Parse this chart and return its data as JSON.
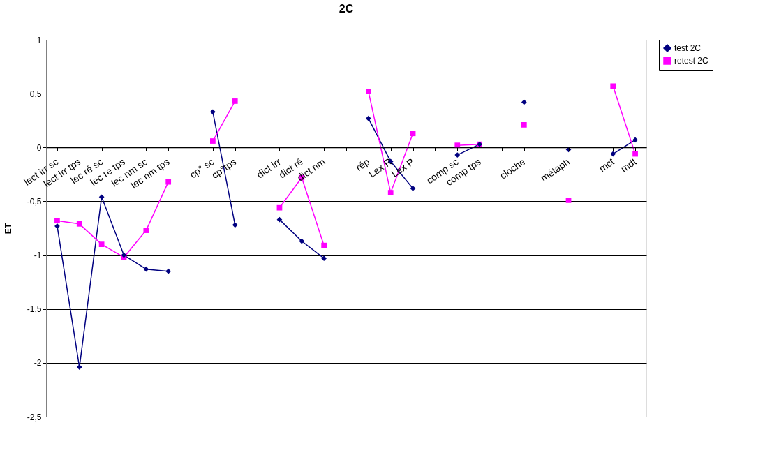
{
  "chart_data": {
    "type": "line",
    "title": "2C",
    "ylabel": "ET",
    "categories": [
      "lect irr sc",
      "lect irr tps",
      "lec ré sc",
      "lec re tps",
      "lec nm sc",
      "lec nm tps",
      null,
      "cp° sc",
      "cp°tps",
      null,
      "dict irr",
      "dict ré",
      "dict nm",
      null,
      "rép",
      "Lex R",
      "Lex P",
      null,
      "comp sc",
      "comp tps",
      null,
      "cloche",
      null,
      "métaph",
      null,
      "mct",
      "mdt"
    ],
    "series": [
      {
        "name": "test 2C",
        "color": "#000080",
        "marker": "diamond",
        "values": [
          -0.73,
          -2.04,
          -0.46,
          -1.0,
          -1.13,
          -1.15,
          null,
          0.33,
          -0.72,
          null,
          -0.67,
          -0.87,
          -1.03,
          null,
          0.27,
          -0.13,
          -0.38,
          null,
          -0.07,
          0.03,
          null,
          0.42,
          null,
          -0.02,
          null,
          -0.06,
          0.07
        ]
      },
      {
        "name": "retest 2C",
        "color": "#ff00ff",
        "marker": "square",
        "values": [
          -0.68,
          -0.71,
          -0.9,
          -1.02,
          -0.77,
          -0.32,
          null,
          0.06,
          0.43,
          null,
          -0.56,
          -0.28,
          -0.91,
          null,
          0.52,
          -0.42,
          0.13,
          null,
          0.02,
          0.03,
          null,
          0.21,
          null,
          -0.49,
          null,
          0.57,
          -0.06
        ]
      }
    ],
    "ylim": [
      -2.5,
      1
    ],
    "yticks": [
      {
        "value": -2.5,
        "label": "-2,5"
      },
      -2,
      {
        "value": -1.5,
        "label": "-1,5"
      },
      -1,
      {
        "value": -0.5,
        "label": "-0,5"
      },
      0,
      {
        "value": 0.5,
        "label": "0,5"
      },
      1
    ],
    "grid": "y",
    "legend": "right",
    "line_style": "solid"
  }
}
